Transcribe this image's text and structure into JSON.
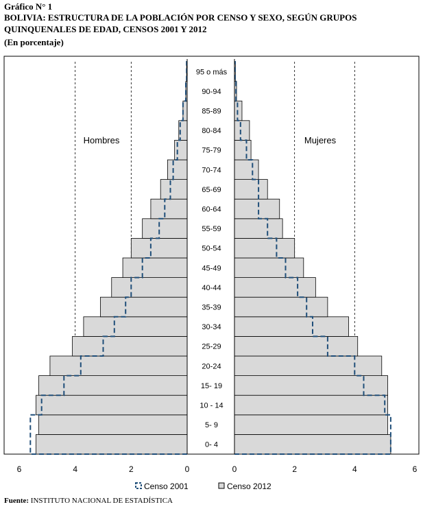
{
  "header": {
    "figure_label": "Gráfico N° 1",
    "title_line1": "BOLIVIA: ESTRUCTURA DE LA POBLACIÓN POR CENSO Y SEXO, SEGÚN  GRUPOS",
    "title_line2": "QUINQUENALES DE EDAD, CENSOS 2001 Y 2012",
    "subtitle": "(En porcentaje)"
  },
  "footer": {
    "source_label": "Fuente:",
    "source_text": " INSTITUTO NACIONAL DE ESTADÍSTICA"
  },
  "colors": {
    "bar_fill": "#d9d9d9",
    "bar_stroke": "#000000",
    "census_2001_line": "#1f4e79",
    "gridline": "#000000"
  },
  "chart_data": {
    "type": "bar",
    "orientation": "horizontal",
    "layout": "population-pyramid",
    "categories": [
      "0- 4",
      "5- 9",
      "10 - 14",
      "15- 19",
      "20-24",
      "25-29",
      "30-34",
      "35-39",
      "40-44",
      "45-49",
      "50-54",
      "55-59",
      "60-64",
      "65-69",
      "70-74",
      "75-79",
      "80-84",
      "85-89",
      "90-94",
      "95 o más"
    ],
    "panels": {
      "left": {
        "label": "Hombres"
      },
      "right": {
        "label": "Mujeres"
      }
    },
    "series": [
      {
        "name": "Censo 2012",
        "style": "filled-bar",
        "left": [
          5.4,
          5.3,
          5.4,
          5.3,
          4.9,
          4.1,
          3.7,
          3.1,
          2.7,
          2.3,
          2.0,
          1.6,
          1.3,
          0.95,
          0.7,
          0.45,
          0.3,
          0.15,
          0.05,
          0.02
        ],
        "right": [
          5.2,
          5.1,
          5.1,
          5.1,
          4.9,
          4.1,
          3.8,
          3.1,
          2.7,
          2.3,
          2.0,
          1.6,
          1.5,
          1.1,
          0.8,
          0.55,
          0.5,
          0.25,
          0.07,
          0.03
        ]
      },
      {
        "name": "Censo 2001",
        "style": "dashed-outline",
        "left": [
          5.6,
          5.6,
          5.2,
          4.4,
          3.8,
          3.0,
          2.6,
          2.2,
          2.0,
          1.6,
          1.3,
          1.0,
          0.8,
          0.6,
          0.5,
          0.35,
          0.25,
          0.15,
          0.05,
          0.02
        ],
        "right": [
          5.2,
          5.2,
          5.0,
          4.3,
          4.0,
          3.1,
          2.6,
          2.4,
          2.1,
          1.7,
          1.4,
          1.1,
          0.8,
          0.8,
          0.6,
          0.4,
          0.2,
          0.1,
          0.05,
          0.02
        ]
      }
    ],
    "x_axis": {
      "range": [
        0,
        6
      ],
      "left_ticks": [
        6,
        4,
        2,
        0
      ],
      "right_ticks": [
        0,
        2,
        4,
        6
      ],
      "gridlines_at": [
        2,
        4
      ],
      "gridline_style": "dashed"
    },
    "legend": {
      "position": "bottom-center",
      "entries": [
        "Censo 2001",
        "Censo 2012"
      ]
    }
  }
}
